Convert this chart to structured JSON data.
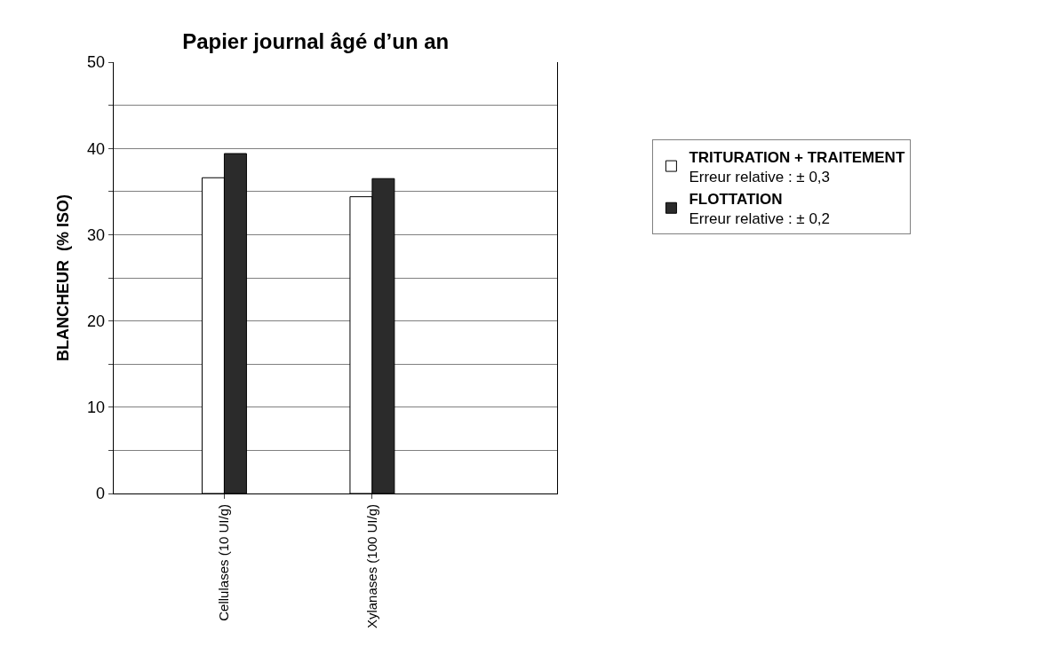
{
  "chart_data": {
    "type": "bar",
    "title": "Papier journal âgé d’un an",
    "ylabel": "BLANCHEUR  (% ISO)",
    "categories": [
      null,
      "Cellulases (10 UI/g)",
      null,
      "Xylanases (100 UI/g)",
      null,
      null
    ],
    "series": [
      {
        "name": "TRITURATION + TRAITEMENT",
        "color": "#ffffff",
        "values": [
          null,
          36.6,
          null,
          34.4,
          null,
          null
        ]
      },
      {
        "name": "FLOTTATION",
        "color": "#2b2b2b",
        "values": [
          null,
          39.4,
          null,
          36.5,
          null,
          null
        ]
      }
    ],
    "annotations": [
      "Erreur relative : ± 0,3",
      "Erreur relative : ± 0,2"
    ],
    "ylim": [
      0,
      50
    ],
    "yticks": [
      0,
      {
        "value": 5,
        "label": null
      },
      10,
      {
        "value": 15,
        "label": null
      },
      20,
      {
        "value": 25,
        "label": null
      },
      30,
      {
        "value": 35,
        "label": null
      },
      40,
      {
        "value": 45,
        "label": null
      },
      50
    ],
    "grid": "y",
    "legend": "right"
  }
}
